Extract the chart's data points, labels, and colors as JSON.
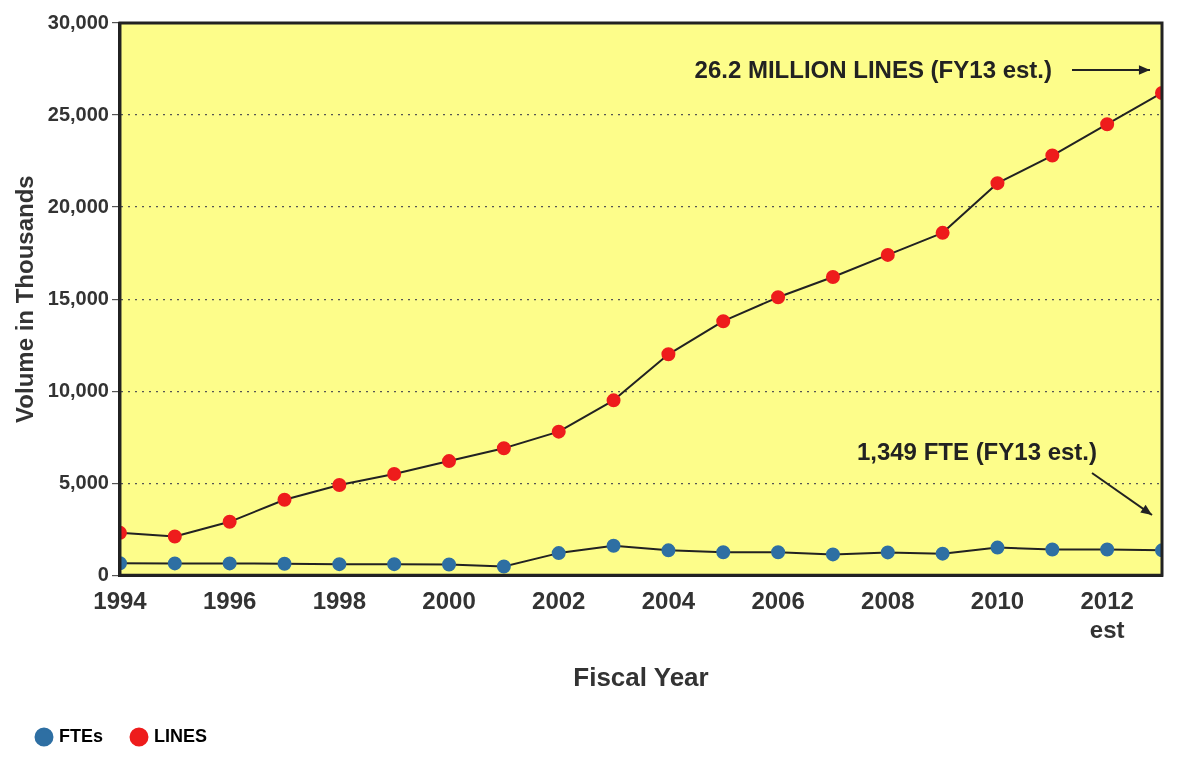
{
  "chart_data": {
    "type": "line",
    "xlabel": "Fiscal Year",
    "ylabel": "Volume in Thousands",
    "x": [
      1994,
      1995,
      1996,
      1997,
      1998,
      1999,
      2000,
      2001,
      2002,
      2003,
      2004,
      2005,
      2006,
      2007,
      2008,
      2009,
      2010,
      2011,
      2012,
      2013
    ],
    "series": [
      {
        "name": "FTEs",
        "color": "#2e6fa3",
        "values": [
          650,
          640,
          640,
          620,
          600,
          600,
          580,
          470,
          1200,
          1600,
          1350,
          1250,
          1250,
          1130,
          1240,
          1170,
          1500,
          1400,
          1400,
          1349
        ]
      },
      {
        "name": "LINES",
        "color": "#ee1c1c",
        "values": [
          2300,
          2100,
          2900,
          4100,
          4900,
          5500,
          6200,
          6900,
          7800,
          9500,
          12000,
          13800,
          15100,
          16200,
          17400,
          18600,
          21300,
          22800,
          24500,
          26200
        ]
      }
    ],
    "xlim": [
      1994,
      2013
    ],
    "xticks": [
      1994,
      1996,
      1998,
      2000,
      2002,
      2004,
      2006,
      2008,
      2010,
      {
        "value": 2012,
        "label": "2012\nest"
      }
    ],
    "ylim": [
      0,
      30000
    ],
    "yticks": [
      {
        "value": 0,
        "label": "0"
      },
      {
        "value": 5000,
        "label": "5,000"
      },
      {
        "value": 10000,
        "label": "10,000"
      },
      {
        "value": 15000,
        "label": "15,000"
      },
      {
        "value": 20000,
        "label": "20,000"
      },
      {
        "value": 25000,
        "label": "25,000"
      },
      {
        "value": 30000,
        "label": "30,000"
      }
    ],
    "grid": "y",
    "legend": "bottom",
    "marker": "circle",
    "line_style": "solid",
    "annotations": [
      "26.2 MILLION LINES (FY13 est.)",
      "1,349 FTE (FY13 est.)"
    ]
  }
}
